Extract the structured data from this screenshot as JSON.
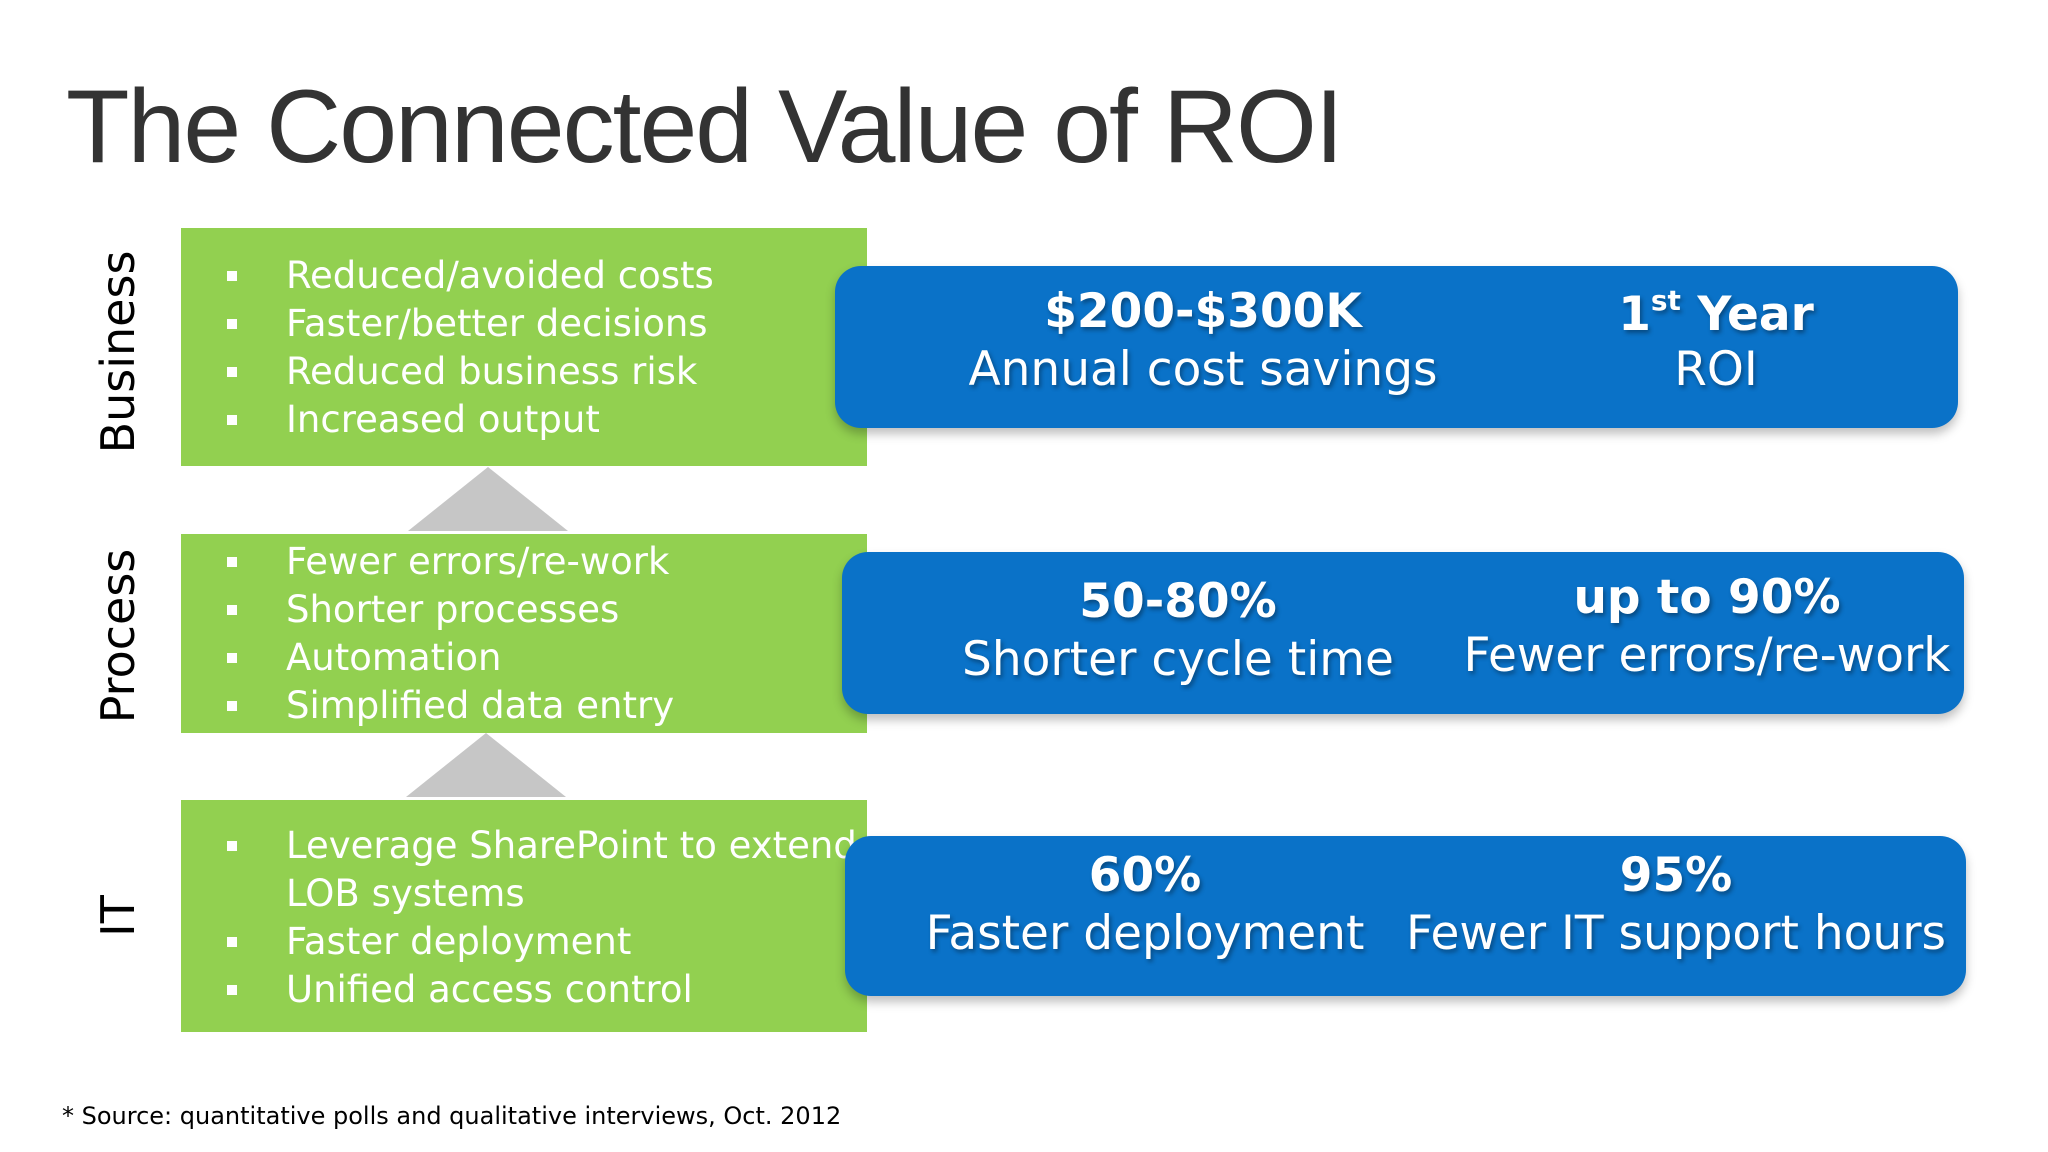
{
  "title": "The Connected Value of ROI",
  "rows": [
    {
      "label": "Business",
      "bullets": [
        "Reduced/avoided costs",
        "Faster/better decisions",
        "Reduced business risk",
        "Increased output"
      ],
      "metrics": [
        {
          "value": "$200-$300K",
          "label": "Annual cost savings"
        },
        {
          "value_prefix": "1",
          "value_sup": "st",
          "value_suffix": " Year",
          "label": "ROI"
        }
      ]
    },
    {
      "label": "Process",
      "bullets": [
        "Fewer errors/re-work",
        "Shorter processes",
        "Automation",
        "Simplified data entry"
      ],
      "metrics": [
        {
          "value": "50-80%",
          "label": "Shorter cycle time"
        },
        {
          "value": "up to 90%",
          "label": "Fewer errors/re-work"
        }
      ]
    },
    {
      "label": "IT",
      "bullets": [
        "Leverage SharePoint to extend",
        "LOB systems",
        "Faster deployment",
        "Unified access control"
      ],
      "metrics": [
        {
          "value": "60%",
          "label": "Faster deployment"
        },
        {
          "value": "95%",
          "label": "Fewer IT support hours"
        }
      ]
    }
  ],
  "footnote": "* Source: quantitative polls and qualitative interviews, Oct. 2012",
  "colors": {
    "green": "#92d050",
    "blue": "#0a72c8",
    "arrow": "#c6c6c6",
    "title": "#333333"
  }
}
